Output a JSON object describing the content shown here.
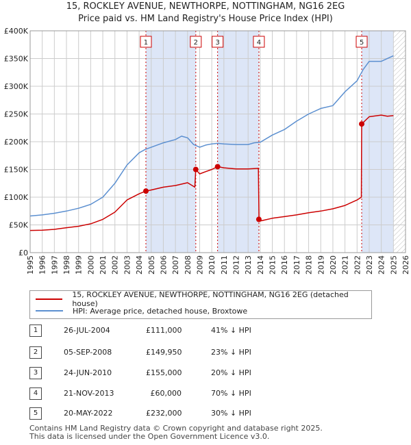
{
  "chart_data": {
    "type": "line",
    "title": "15, ROCKLEY AVENUE, NEWTHORPE, NOTTINGHAM, NG16 2EG",
    "subtitle": "Price paid vs. HM Land Registry's House Price Index (HPI)",
    "xlim": [
      1995,
      2026
    ],
    "ylim": [
      0,
      400000
    ],
    "y_ticks": [
      {
        "value": 0,
        "label": "£0"
      },
      {
        "value": 50000,
        "label": "£50K"
      },
      {
        "value": 100000,
        "label": "£100K"
      },
      {
        "value": 150000,
        "label": "£150K"
      },
      {
        "value": 200000,
        "label": "£200K"
      },
      {
        "value": 250000,
        "label": "£250K"
      },
      {
        "value": 300000,
        "label": "£300K"
      },
      {
        "value": 350000,
        "label": "£350K"
      },
      {
        "value": 400000,
        "label": "£400K"
      }
    ],
    "x_ticks": [
      "1995",
      "1996",
      "1997",
      "1998",
      "1999",
      "2000",
      "2001",
      "2002",
      "2003",
      "2004",
      "2005",
      "2006",
      "2007",
      "2008",
      "2009",
      "2010",
      "2011",
      "2012",
      "2013",
      "2014",
      "2015",
      "2016",
      "2017",
      "2018",
      "2019",
      "2020",
      "2021",
      "2022",
      "2023",
      "2024",
      "2025",
      "2026"
    ],
    "future_start": 2025.0,
    "series": [
      {
        "name": "15, ROCKLEY AVENUE, NEWTHORPE, NOTTINGHAM, NG16 2EG (detached house)",
        "color": "#cc0000",
        "x": [
          1995.0,
          1996.0,
          1997.0,
          1998.0,
          1999.0,
          2000.0,
          2001.0,
          2002.0,
          2003.0,
          2004.0,
          2004.56,
          2005.0,
          2006.0,
          2007.0,
          2008.0,
          2008.6,
          2008.68,
          2009.0,
          2009.5,
          2010.0,
          2010.48,
          2011.0,
          2012.0,
          2013.0,
          2013.85,
          2013.9,
          2014.0,
          2015.0,
          2016.0,
          2017.0,
          2018.0,
          2019.0,
          2020.0,
          2021.0,
          2022.0,
          2022.35,
          2022.38,
          2023.0,
          2024.0,
          2024.5,
          2025.0
        ],
        "y": [
          40000,
          40500,
          42000,
          45000,
          47500,
          52000,
          60000,
          73000,
          95000,
          106000,
          111000,
          113000,
          118000,
          121000,
          126000,
          118000,
          149950,
          142000,
          146000,
          150000,
          155000,
          153000,
          151000,
          151000,
          152000,
          60000,
          57000,
          62000,
          65000,
          68000,
          72000,
          75000,
          79000,
          85000,
          95000,
          100000,
          232000,
          245000,
          248000,
          246000,
          247000
        ]
      },
      {
        "name": "HPI: Average price, detached house, Broxtowe",
        "color": "#5b8fd0",
        "x": [
          1995.0,
          1996.0,
          1997.0,
          1998.0,
          1999.0,
          2000.0,
          2001.0,
          2002.0,
          2003.0,
          2004.0,
          2004.5,
          2005.0,
          2006.0,
          2007.0,
          2007.5,
          2008.0,
          2008.5,
          2009.0,
          2009.5,
          2010.0,
          2010.5,
          2011.0,
          2012.0,
          2013.0,
          2013.5,
          2014.0,
          2015.0,
          2016.0,
          2017.0,
          2018.0,
          2019.0,
          2020.0,
          2021.0,
          2022.0,
          2022.5,
          2023.0,
          2024.0,
          2025.0
        ],
        "y": [
          66000,
          68000,
          71000,
          75000,
          80000,
          87000,
          100000,
          125000,
          158000,
          180000,
          186000,
          190000,
          198000,
          204000,
          210000,
          207000,
          195000,
          190000,
          194000,
          196000,
          197000,
          196000,
          195000,
          195000,
          198000,
          199000,
          212000,
          222000,
          237000,
          250000,
          260000,
          265000,
          290000,
          310000,
          330000,
          345000,
          345000,
          355000
        ]
      }
    ],
    "transactions": [
      {
        "num": "1",
        "date": "26-JUL-2004",
        "price": "£111,000",
        "hpi": "41% ↓ HPI",
        "x": 2004.56,
        "y": 111000
      },
      {
        "num": "2",
        "date": "05-SEP-2008",
        "price": "£149,950",
        "hpi": "23% ↓ HPI",
        "x": 2008.68,
        "y": 149950
      },
      {
        "num": "3",
        "date": "24-JUN-2010",
        "price": "£155,000",
        "hpi": "20% ↓ HPI",
        "x": 2010.48,
        "y": 155000
      },
      {
        "num": "4",
        "date": "21-NOV-2013",
        "price": "£60,000",
        "hpi": "70% ↓ HPI",
        "x": 2013.89,
        "y": 60000
      },
      {
        "num": "5",
        "date": "20-MAY-2022",
        "price": "£232,000",
        "hpi": "30% ↓ HPI",
        "x": 2022.38,
        "y": 232000
      }
    ],
    "shaded_ranges": [
      [
        2004.56,
        2008.68
      ],
      [
        2010.48,
        2013.89
      ],
      [
        2022.38,
        2025.0
      ]
    ],
    "colors": {
      "shade": "#dde6f7",
      "grid": "#cccccc",
      "vline": "#cc0000"
    }
  },
  "footer": {
    "line1": "Contains HM Land Registry data © Crown copyright and database right 2025.",
    "line2": "This data is licensed under the Open Government Licence v3.0."
  }
}
